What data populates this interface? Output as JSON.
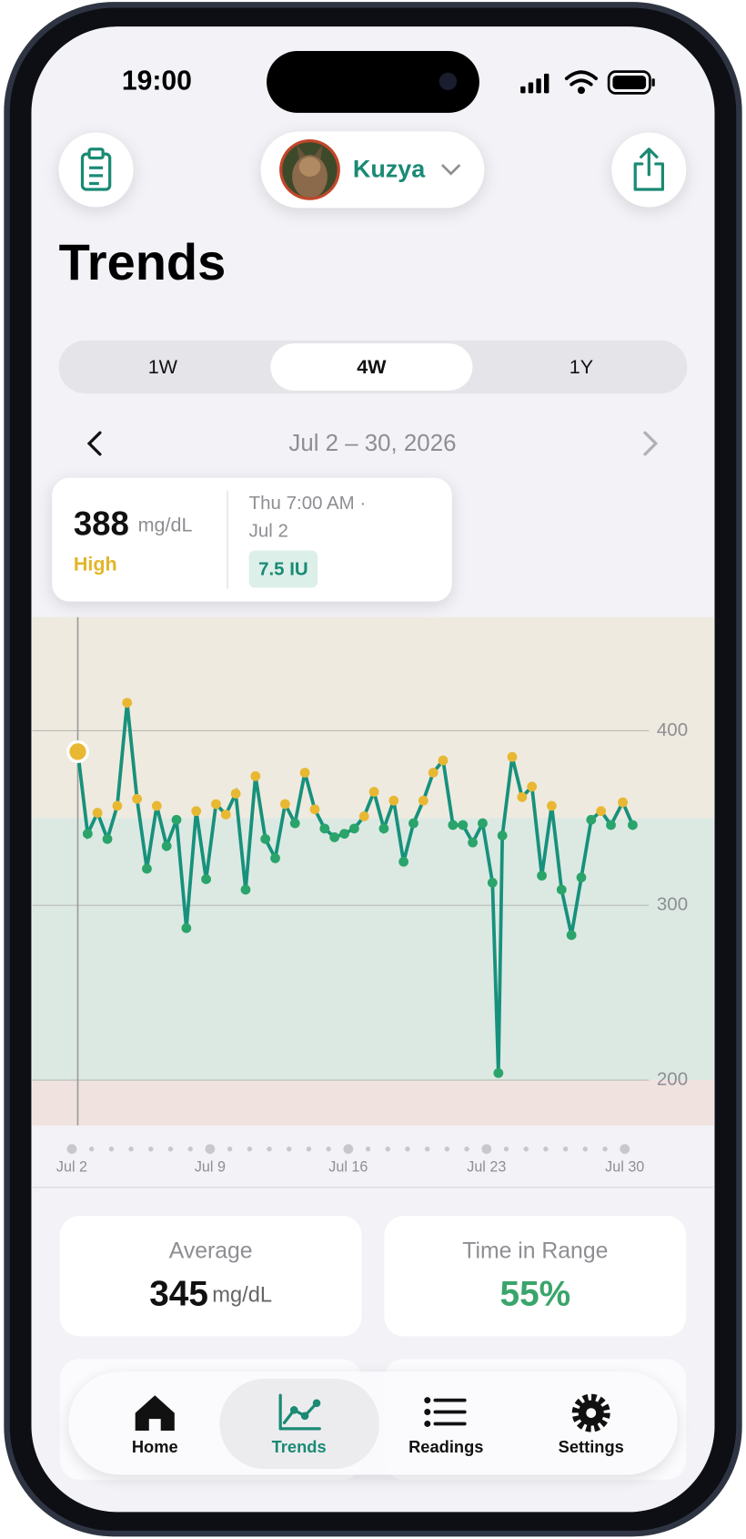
{
  "status_bar": {
    "time": "19:00"
  },
  "header": {
    "profile_name": "Kuzya",
    "title": "Trends"
  },
  "range_tabs": {
    "options": [
      "1W",
      "4W",
      "1Y"
    ],
    "selected": 1
  },
  "date_range": "Jul 2 – 30, 2026",
  "tooltip": {
    "value": 388,
    "unit": "mg/dL",
    "status": "High",
    "time": "Thu 7:00 AM ·",
    "date": "Jul 2",
    "dose": "7.5 IU"
  },
  "chart_data": {
    "type": "line",
    "x": [
      0.3,
      0.8,
      1.3,
      1.8,
      2.3,
      2.8,
      3.3,
      3.8,
      4.3,
      4.8,
      5.3,
      5.8,
      6.3,
      6.8,
      7.3,
      7.8,
      8.3,
      8.8,
      9.3,
      9.8,
      10.3,
      10.8,
      11.3,
      11.8,
      12.3,
      12.8,
      13.3,
      13.8,
      14.3,
      14.8,
      15.3,
      15.8,
      16.3,
      16.8,
      17.3,
      17.8,
      18.3,
      18.8,
      19.3,
      19.8,
      20.3,
      20.8,
      21.3,
      21.6,
      21.8,
      22.3,
      22.8,
      23.3,
      23.8,
      24.3,
      24.8,
      25.3,
      25.8,
      26.3,
      26.8,
      27.3,
      27.9,
      28.4
    ],
    "xlim": [
      -2,
      32.5
    ],
    "xticks": [
      {
        "value": 0,
        "label": "Jul 2"
      },
      {
        "value": 7,
        "label": "Jul 9"
      },
      {
        "value": 14,
        "label": "Jul 16"
      },
      {
        "value": 21,
        "label": "Jul 23"
      },
      {
        "value": 28,
        "label": "Jul 30"
      }
    ],
    "ylim": [
      174,
      465
    ],
    "yticks": [
      200,
      300,
      400
    ],
    "grid": true,
    "target_range": [
      200,
      350
    ],
    "band_colors": {
      "high": "#efeadf",
      "in_range": "#dce9e3",
      "low": "#f0e2df"
    },
    "selected_index": 0,
    "series": [
      {
        "color": "#17917c",
        "high_color": "#e8b833",
        "in_range_color": "#2aa46a",
        "values": [
          388,
          341,
          353,
          338,
          357,
          416,
          361,
          321,
          357,
          334,
          349,
          287,
          354,
          315,
          358,
          352,
          364,
          309,
          374,
          338,
          327,
          358,
          347,
          376,
          355,
          344,
          339,
          341,
          344,
          351,
          365,
          344,
          360,
          325,
          347,
          360,
          376,
          383,
          346,
          346,
          336,
          347,
          313,
          204,
          340,
          385,
          362,
          368,
          317,
          357,
          309,
          283,
          316,
          349,
          354,
          346,
          359,
          346
        ]
      }
    ]
  },
  "stats": [
    {
      "label": "Average",
      "value": 345,
      "unit": "mg/dL"
    },
    {
      "label": "Time in Range",
      "value": "55%"
    }
  ],
  "nav": {
    "items": [
      "Home",
      "Trends",
      "Readings",
      "Settings"
    ],
    "selected": 1
  }
}
